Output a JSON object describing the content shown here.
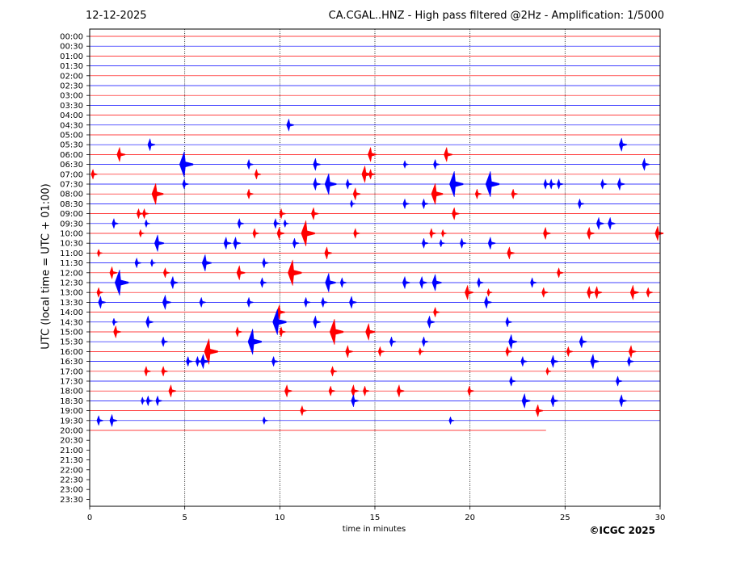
{
  "header": {
    "date": "12-12-2025",
    "title": "CA.CGAL..HNZ - High pass filtered @2Hz - Amplification: 1/5000"
  },
  "footer": {
    "copyright": "©ICGC 2025"
  },
  "chart_data": {
    "type": "line",
    "subtype": "helicorder",
    "xlabel": "time in minutes",
    "ylabel": "UTC (local time = UTC + 01:00)",
    "xlim": [
      0,
      30
    ],
    "x_ticks": [
      "0",
      "5",
      "10",
      "15",
      "20",
      "25",
      "30"
    ],
    "rows": [
      "00:00",
      "00:30",
      "01:00",
      "01:30",
      "02:00",
      "02:30",
      "03:00",
      "03:30",
      "04:00",
      "04:30",
      "05:00",
      "05:30",
      "06:00",
      "06:30",
      "07:00",
      "07:30",
      "08:00",
      "08:30",
      "09:00",
      "09:30",
      "10:00",
      "10:30",
      "11:00",
      "11:30",
      "12:00",
      "12:30",
      "13:00",
      "13:30",
      "14:00",
      "14:30",
      "15:00",
      "15:30",
      "16:00",
      "16:30",
      "17:00",
      "17:30",
      "18:00",
      "18:30",
      "19:00",
      "19:30",
      "20:00",
      "20:30",
      "21:00",
      "21:30",
      "22:00",
      "22:30",
      "23:00",
      "23:30"
    ],
    "row_colors": [
      "#ff0000",
      "#0000ff"
    ],
    "trace_end": {
      "row": "20:00",
      "minute": 24
    },
    "grid": {
      "vertical_minutes": [
        5,
        10,
        15,
        20,
        25
      ],
      "style": "dotted"
    },
    "events": [
      {
        "row": "04:30",
        "minute": 10.5,
        "amp": 0.4
      },
      {
        "row": "05:30",
        "minute": 3.2,
        "amp": 0.4
      },
      {
        "row": "05:30",
        "minute": 28.0,
        "amp": 0.45
      },
      {
        "row": "06:00",
        "minute": 1.6,
        "amp": 0.5
      },
      {
        "row": "06:00",
        "minute": 14.8,
        "amp": 0.5
      },
      {
        "row": "06:00",
        "minute": 18.8,
        "amp": 0.5
      },
      {
        "row": "06:30",
        "minute": 5.0,
        "amp": 1.0
      },
      {
        "row": "06:30",
        "minute": 8.4,
        "amp": 0.3
      },
      {
        "row": "06:30",
        "minute": 11.9,
        "amp": 0.4
      },
      {
        "row": "06:30",
        "minute": 16.6,
        "amp": 0.2
      },
      {
        "row": "06:30",
        "minute": 18.2,
        "amp": 0.3
      },
      {
        "row": "06:30",
        "minute": 29.2,
        "amp": 0.4
      },
      {
        "row": "07:00",
        "minute": 0.2,
        "amp": 0.3
      },
      {
        "row": "07:00",
        "minute": 8.8,
        "amp": 0.3
      },
      {
        "row": "07:00",
        "minute": 14.5,
        "amp": 0.6
      },
      {
        "row": "07:00",
        "minute": 14.8,
        "amp": 0.3
      },
      {
        "row": "07:30",
        "minute": 5.0,
        "amp": 0.3
      },
      {
        "row": "07:30",
        "minute": 11.9,
        "amp": 0.4
      },
      {
        "row": "07:30",
        "minute": 12.6,
        "amp": 0.8
      },
      {
        "row": "07:30",
        "minute": 13.6,
        "amp": 0.3
      },
      {
        "row": "07:30",
        "minute": 19.2,
        "amp": 1.0
      },
      {
        "row": "07:30",
        "minute": 21.1,
        "amp": 1.0
      },
      {
        "row": "07:30",
        "minute": 24.0,
        "amp": 0.3
      },
      {
        "row": "07:30",
        "minute": 24.3,
        "amp": 0.3
      },
      {
        "row": "07:30",
        "minute": 24.7,
        "amp": 0.3
      },
      {
        "row": "07:30",
        "minute": 27.0,
        "amp": 0.3
      },
      {
        "row": "07:30",
        "minute": 27.9,
        "amp": 0.4
      },
      {
        "row": "08:00",
        "minute": 3.5,
        "amp": 0.8
      },
      {
        "row": "08:00",
        "minute": 8.4,
        "amp": 0.3
      },
      {
        "row": "08:00",
        "minute": 14.0,
        "amp": 0.4
      },
      {
        "row": "08:00",
        "minute": 18.2,
        "amp": 0.8
      },
      {
        "row": "08:00",
        "minute": 20.4,
        "amp": 0.3
      },
      {
        "row": "08:00",
        "minute": 22.3,
        "amp": 0.3
      },
      {
        "row": "08:30",
        "minute": 13.8,
        "amp": 0.2
      },
      {
        "row": "08:30",
        "minute": 16.6,
        "amp": 0.3
      },
      {
        "row": "08:30",
        "minute": 17.6,
        "amp": 0.3
      },
      {
        "row": "08:30",
        "minute": 25.8,
        "amp": 0.3
      },
      {
        "row": "09:00",
        "minute": 2.6,
        "amp": 0.3
      },
      {
        "row": "09:00",
        "minute": 2.9,
        "amp": 0.3
      },
      {
        "row": "09:00",
        "minute": 10.1,
        "amp": 0.3
      },
      {
        "row": "09:00",
        "minute": 11.8,
        "amp": 0.4
      },
      {
        "row": "09:00",
        "minute": 19.2,
        "amp": 0.4
      },
      {
        "row": "09:30",
        "minute": 1.3,
        "amp": 0.3
      },
      {
        "row": "09:30",
        "minute": 3.0,
        "amp": 0.2
      },
      {
        "row": "09:30",
        "minute": 7.9,
        "amp": 0.3
      },
      {
        "row": "09:30",
        "minute": 9.8,
        "amp": 0.3
      },
      {
        "row": "09:30",
        "minute": 10.3,
        "amp": 0.2
      },
      {
        "row": "09:30",
        "minute": 26.8,
        "amp": 0.4
      },
      {
        "row": "09:30",
        "minute": 27.4,
        "amp": 0.4
      },
      {
        "row": "10:00",
        "minute": 2.7,
        "amp": 0.2
      },
      {
        "row": "10:00",
        "minute": 8.7,
        "amp": 0.3
      },
      {
        "row": "10:00",
        "minute": 10.0,
        "amp": 0.4
      },
      {
        "row": "10:00",
        "minute": 11.4,
        "amp": 1.0
      },
      {
        "row": "10:00",
        "minute": 14.0,
        "amp": 0.3
      },
      {
        "row": "10:00",
        "minute": 18.0,
        "amp": 0.3
      },
      {
        "row": "10:00",
        "minute": 18.6,
        "amp": 0.2
      },
      {
        "row": "10:00",
        "minute": 24.0,
        "amp": 0.4
      },
      {
        "row": "10:00",
        "minute": 26.3,
        "amp": 0.4
      },
      {
        "row": "10:00",
        "minute": 29.9,
        "amp": 0.5
      },
      {
        "row": "10:30",
        "minute": 3.6,
        "amp": 0.6
      },
      {
        "row": "10:30",
        "minute": 7.2,
        "amp": 0.4
      },
      {
        "row": "10:30",
        "minute": 7.7,
        "amp": 0.4
      },
      {
        "row": "10:30",
        "minute": 10.8,
        "amp": 0.3
      },
      {
        "row": "10:30",
        "minute": 17.6,
        "amp": 0.3
      },
      {
        "row": "10:30",
        "minute": 18.5,
        "amp": 0.2
      },
      {
        "row": "10:30",
        "minute": 19.6,
        "amp": 0.3
      },
      {
        "row": "10:30",
        "minute": 21.1,
        "amp": 0.4
      },
      {
        "row": "11:00",
        "minute": 0.5,
        "amp": 0.2
      },
      {
        "row": "11:00",
        "minute": 12.5,
        "amp": 0.4
      },
      {
        "row": "11:00",
        "minute": 22.1,
        "amp": 0.4
      },
      {
        "row": "11:30",
        "minute": 2.5,
        "amp": 0.3
      },
      {
        "row": "11:30",
        "minute": 3.3,
        "amp": 0.2
      },
      {
        "row": "11:30",
        "minute": 6.1,
        "amp": 0.6
      },
      {
        "row": "11:30",
        "minute": 9.2,
        "amp": 0.3
      },
      {
        "row": "12:00",
        "minute": 1.2,
        "amp": 0.4
      },
      {
        "row": "12:00",
        "minute": 4.0,
        "amp": 0.3
      },
      {
        "row": "12:00",
        "minute": 7.9,
        "amp": 0.5
      },
      {
        "row": "12:00",
        "minute": 10.7,
        "amp": 1.0
      },
      {
        "row": "12:00",
        "minute": 24.7,
        "amp": 0.3
      },
      {
        "row": "12:30",
        "minute": 1.6,
        "amp": 1.0
      },
      {
        "row": "12:30",
        "minute": 4.4,
        "amp": 0.4
      },
      {
        "row": "12:30",
        "minute": 9.1,
        "amp": 0.3
      },
      {
        "row": "12:30",
        "minute": 12.6,
        "amp": 0.7
      },
      {
        "row": "12:30",
        "minute": 13.3,
        "amp": 0.3
      },
      {
        "row": "12:30",
        "minute": 16.6,
        "amp": 0.4
      },
      {
        "row": "12:30",
        "minute": 17.5,
        "amp": 0.4
      },
      {
        "row": "12:30",
        "minute": 18.2,
        "amp": 0.6
      },
      {
        "row": "12:30",
        "minute": 20.5,
        "amp": 0.3
      },
      {
        "row": "12:30",
        "minute": 23.3,
        "amp": 0.3
      },
      {
        "row": "13:00",
        "minute": 0.5,
        "amp": 0.3
      },
      {
        "row": "13:00",
        "minute": 19.9,
        "amp": 0.5
      },
      {
        "row": "13:00",
        "minute": 21.0,
        "amp": 0.2
      },
      {
        "row": "13:00",
        "minute": 23.9,
        "amp": 0.3
      },
      {
        "row": "13:00",
        "minute": 26.3,
        "amp": 0.4
      },
      {
        "row": "13:00",
        "minute": 26.7,
        "amp": 0.4
      },
      {
        "row": "13:00",
        "minute": 28.6,
        "amp": 0.5
      },
      {
        "row": "13:00",
        "minute": 29.4,
        "amp": 0.3
      },
      {
        "row": "13:30",
        "minute": 0.6,
        "amp": 0.4
      },
      {
        "row": "13:30",
        "minute": 4.0,
        "amp": 0.5
      },
      {
        "row": "13:30",
        "minute": 5.9,
        "amp": 0.3
      },
      {
        "row": "13:30",
        "minute": 8.4,
        "amp": 0.3
      },
      {
        "row": "13:30",
        "minute": 11.4,
        "amp": 0.3
      },
      {
        "row": "13:30",
        "minute": 12.3,
        "amp": 0.3
      },
      {
        "row": "13:30",
        "minute": 13.8,
        "amp": 0.4
      },
      {
        "row": "13:30",
        "minute": 20.9,
        "amp": 0.4
      },
      {
        "row": "14:00",
        "minute": 10.0,
        "amp": 0.5
      },
      {
        "row": "14:00",
        "minute": 18.2,
        "amp": 0.3
      },
      {
        "row": "14:30",
        "minute": 1.3,
        "amp": 0.2
      },
      {
        "row": "14:30",
        "minute": 3.1,
        "amp": 0.4
      },
      {
        "row": "14:30",
        "minute": 9.9,
        "amp": 1.0
      },
      {
        "row": "14:30",
        "minute": 11.9,
        "amp": 0.4
      },
      {
        "row": "14:30",
        "minute": 17.9,
        "amp": 0.4
      },
      {
        "row": "14:30",
        "minute": 22.0,
        "amp": 0.3
      },
      {
        "row": "15:00",
        "minute": 1.4,
        "amp": 0.4
      },
      {
        "row": "15:00",
        "minute": 7.8,
        "amp": 0.3
      },
      {
        "row": "15:00",
        "minute": 10.1,
        "amp": 0.3
      },
      {
        "row": "15:00",
        "minute": 12.9,
        "amp": 1.0
      },
      {
        "row": "15:00",
        "minute": 14.7,
        "amp": 0.6
      },
      {
        "row": "15:30",
        "minute": 3.9,
        "amp": 0.3
      },
      {
        "row": "15:30",
        "minute": 8.6,
        "amp": 1.0
      },
      {
        "row": "15:30",
        "minute": 15.9,
        "amp": 0.3
      },
      {
        "row": "15:30",
        "minute": 17.6,
        "amp": 0.3
      },
      {
        "row": "15:30",
        "minute": 22.2,
        "amp": 0.5
      },
      {
        "row": "15:30",
        "minute": 25.9,
        "amp": 0.4
      },
      {
        "row": "16:00",
        "minute": 6.3,
        "amp": 1.0
      },
      {
        "row": "16:00",
        "minute": 13.6,
        "amp": 0.4
      },
      {
        "row": "16:00",
        "minute": 15.3,
        "amp": 0.3
      },
      {
        "row": "16:00",
        "minute": 17.4,
        "amp": 0.2
      },
      {
        "row": "16:00",
        "minute": 22.0,
        "amp": 0.3
      },
      {
        "row": "16:00",
        "minute": 25.2,
        "amp": 0.3
      },
      {
        "row": "16:00",
        "minute": 28.5,
        "amp": 0.4
      },
      {
        "row": "16:30",
        "minute": 5.2,
        "amp": 0.3
      },
      {
        "row": "16:30",
        "minute": 5.7,
        "amp": 0.3
      },
      {
        "row": "16:30",
        "minute": 6.0,
        "amp": 0.5
      },
      {
        "row": "16:30",
        "minute": 9.7,
        "amp": 0.3
      },
      {
        "row": "16:30",
        "minute": 22.8,
        "amp": 0.3
      },
      {
        "row": "16:30",
        "minute": 24.4,
        "amp": 0.4
      },
      {
        "row": "16:30",
        "minute": 26.5,
        "amp": 0.5
      },
      {
        "row": "16:30",
        "minute": 28.4,
        "amp": 0.3
      },
      {
        "row": "17:00",
        "minute": 3.0,
        "amp": 0.3
      },
      {
        "row": "17:00",
        "minute": 3.9,
        "amp": 0.3
      },
      {
        "row": "17:00",
        "minute": 12.8,
        "amp": 0.3
      },
      {
        "row": "17:00",
        "minute": 24.1,
        "amp": 0.2
      },
      {
        "row": "17:30",
        "minute": 22.2,
        "amp": 0.3
      },
      {
        "row": "17:30",
        "minute": 27.8,
        "amp": 0.3
      },
      {
        "row": "18:00",
        "minute": 4.3,
        "amp": 0.4
      },
      {
        "row": "18:00",
        "minute": 10.4,
        "amp": 0.4
      },
      {
        "row": "18:00",
        "minute": 12.7,
        "amp": 0.3
      },
      {
        "row": "18:00",
        "minute": 13.9,
        "amp": 0.4
      },
      {
        "row": "18:00",
        "minute": 14.5,
        "amp": 0.3
      },
      {
        "row": "18:00",
        "minute": 16.3,
        "amp": 0.4
      },
      {
        "row": "18:00",
        "minute": 20.0,
        "amp": 0.3
      },
      {
        "row": "18:30",
        "minute": 2.8,
        "amp": 0.2
      },
      {
        "row": "18:30",
        "minute": 3.1,
        "amp": 0.3
      },
      {
        "row": "18:30",
        "minute": 3.6,
        "amp": 0.3
      },
      {
        "row": "18:30",
        "minute": 13.9,
        "amp": 0.4
      },
      {
        "row": "18:30",
        "minute": 22.9,
        "amp": 0.5
      },
      {
        "row": "18:30",
        "minute": 24.4,
        "amp": 0.4
      },
      {
        "row": "18:30",
        "minute": 28.0,
        "amp": 0.4
      },
      {
        "row": "19:00",
        "minute": 11.2,
        "amp": 0.3
      },
      {
        "row": "19:00",
        "minute": 23.6,
        "amp": 0.4
      },
      {
        "row": "19:30",
        "minute": 0.5,
        "amp": 0.3
      },
      {
        "row": "19:30",
        "minute": 1.2,
        "amp": 0.4
      },
      {
        "row": "19:30",
        "minute": 9.2,
        "amp": 0.2
      },
      {
        "row": "19:30",
        "minute": 19.0,
        "amp": 0.2
      }
    ]
  }
}
